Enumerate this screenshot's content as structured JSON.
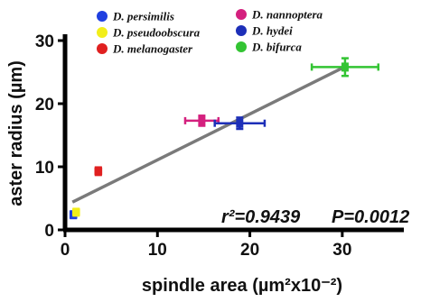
{
  "chart_data": {
    "type": "scatter",
    "xlabel": "spindle area (µm²x10⁻²)",
    "ylabel": "aster radius (µm)",
    "xlim": [
      0,
      35
    ],
    "ylim": [
      0,
      30
    ],
    "x_ticks": [
      "0",
      "10",
      "20",
      "30"
    ],
    "y_ticks": [
      "0",
      "10",
      "20",
      "30"
    ],
    "legend": [
      {
        "name": "D. persimilis",
        "color": "#1f3fe0"
      },
      {
        "name": "D. pseudoobscura",
        "color": "#f2ee1a"
      },
      {
        "name": "D. melanogaster",
        "color": "#e02020"
      },
      {
        "name": "D. nannoptera",
        "color": "#d4207e"
      },
      {
        "name": "D. hydei",
        "color": "#1d2fb8"
      },
      {
        "name": "D. bifurca",
        "color": "#33c433"
      }
    ],
    "points": [
      {
        "species": "D. persimilis",
        "x": 0.9,
        "y": 2.4,
        "xerr": 0.3,
        "yerr": 0.5,
        "color": "#1f3fe0"
      },
      {
        "species": "D. pseudoobscura",
        "x": 1.2,
        "y": 2.8,
        "xerr": 0.3,
        "yerr": 0.4,
        "color": "#f2ee1a"
      },
      {
        "species": "D. melanogaster",
        "x": 3.6,
        "y": 9.3,
        "xerr": 0.3,
        "yerr": 0.6,
        "color": "#e02020"
      },
      {
        "species": "D. nannoptera",
        "x": 14.8,
        "y": 17.3,
        "xerr": 1.8,
        "yerr": 0.8,
        "color": "#d4207e"
      },
      {
        "species": "D. hydei",
        "x": 18.9,
        "y": 16.9,
        "xerr": 2.7,
        "yerr": 0.9,
        "color": "#1d2fb8"
      },
      {
        "species": "D. bifurca",
        "x": 30.3,
        "y": 25.8,
        "xerr": 3.6,
        "yerr": 1.4,
        "color": "#33c433"
      }
    ],
    "fit_line": {
      "x": [
        0.8,
        30.5
      ],
      "y": [
        4.4,
        26.0
      ],
      "color": "#7a7a7a"
    },
    "annotations": {
      "r2_label": "r²=0.9439",
      "p_label": "P=0.0012"
    },
    "grid": false,
    "legend_placement": "top"
  }
}
